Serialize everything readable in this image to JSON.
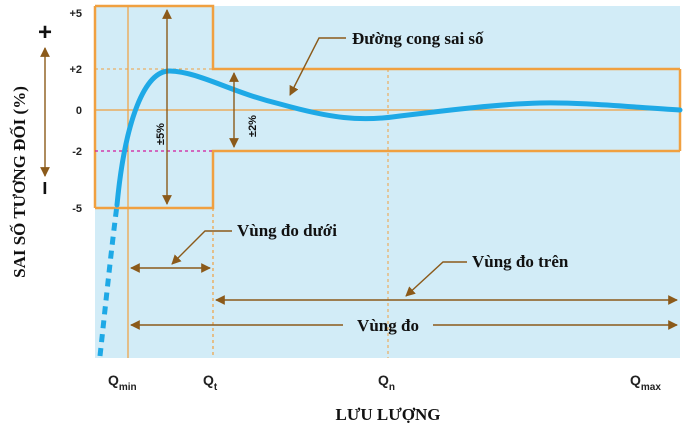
{
  "y_axis": {
    "title": "SAI SỐ TƯƠNG ĐỐI (%)",
    "ticks": [
      "+5",
      "+2",
      "0",
      "-2",
      "-5"
    ],
    "plus_sign": "+",
    "minus_sign": "−"
  },
  "x_axis": {
    "title": "LƯU LƯỢNG",
    "q_min": {
      "base": "Q",
      "sub": "min"
    },
    "q_t": {
      "base": "Q",
      "sub": "t"
    },
    "q_n": {
      "base": "Q",
      "sub": "n"
    },
    "q_max": {
      "base": "Q",
      "sub": "max"
    }
  },
  "callouts": {
    "error_curve": "Đường cong sai số",
    "lower_zone": "Vùng đo dưới",
    "upper_zone": "Vùng đo trên",
    "measuring_range": "Vùng đo"
  },
  "tolerance": {
    "lower_band": "±5%",
    "upper_band": "±2%"
  },
  "colors": {
    "orange": "#f0a040",
    "fill": "#d2ecf7",
    "curve": "#1ea9e6",
    "arrow": "#8b5a1a",
    "magenta": "#d2189b"
  }
}
